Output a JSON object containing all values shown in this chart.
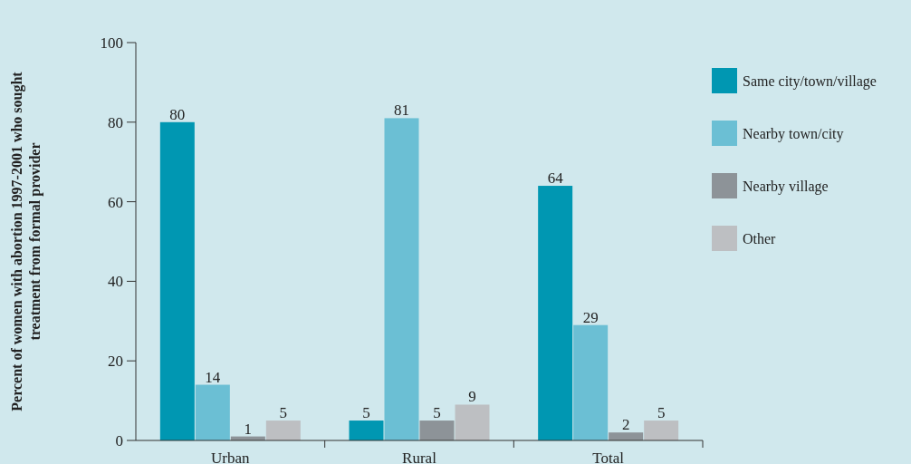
{
  "chart_data": {
    "type": "bar",
    "ylabel": "Percent of women with abortion 1997-2001 who sought treatment from formal provider",
    "categories": [
      "Urban",
      "Rural",
      "Total"
    ],
    "series": [
      {
        "name": "Same city/town/village",
        "color": "#0097b2",
        "values": [
          80,
          5,
          64
        ]
      },
      {
        "name": "Nearby town/city",
        "color": "#6bbfd4",
        "values": [
          14,
          81,
          29
        ]
      },
      {
        "name": "Nearby village",
        "color": "#8d9398",
        "values": [
          1,
          5,
          2
        ]
      },
      {
        "name": "Other",
        "color": "#bdbfc2",
        "values": [
          5,
          9,
          5
        ]
      }
    ],
    "ylim": [
      0,
      100
    ],
    "yticks": [
      0,
      20,
      40,
      60,
      80,
      100
    ],
    "data_labels": true,
    "legend": "right",
    "grid": false
  }
}
